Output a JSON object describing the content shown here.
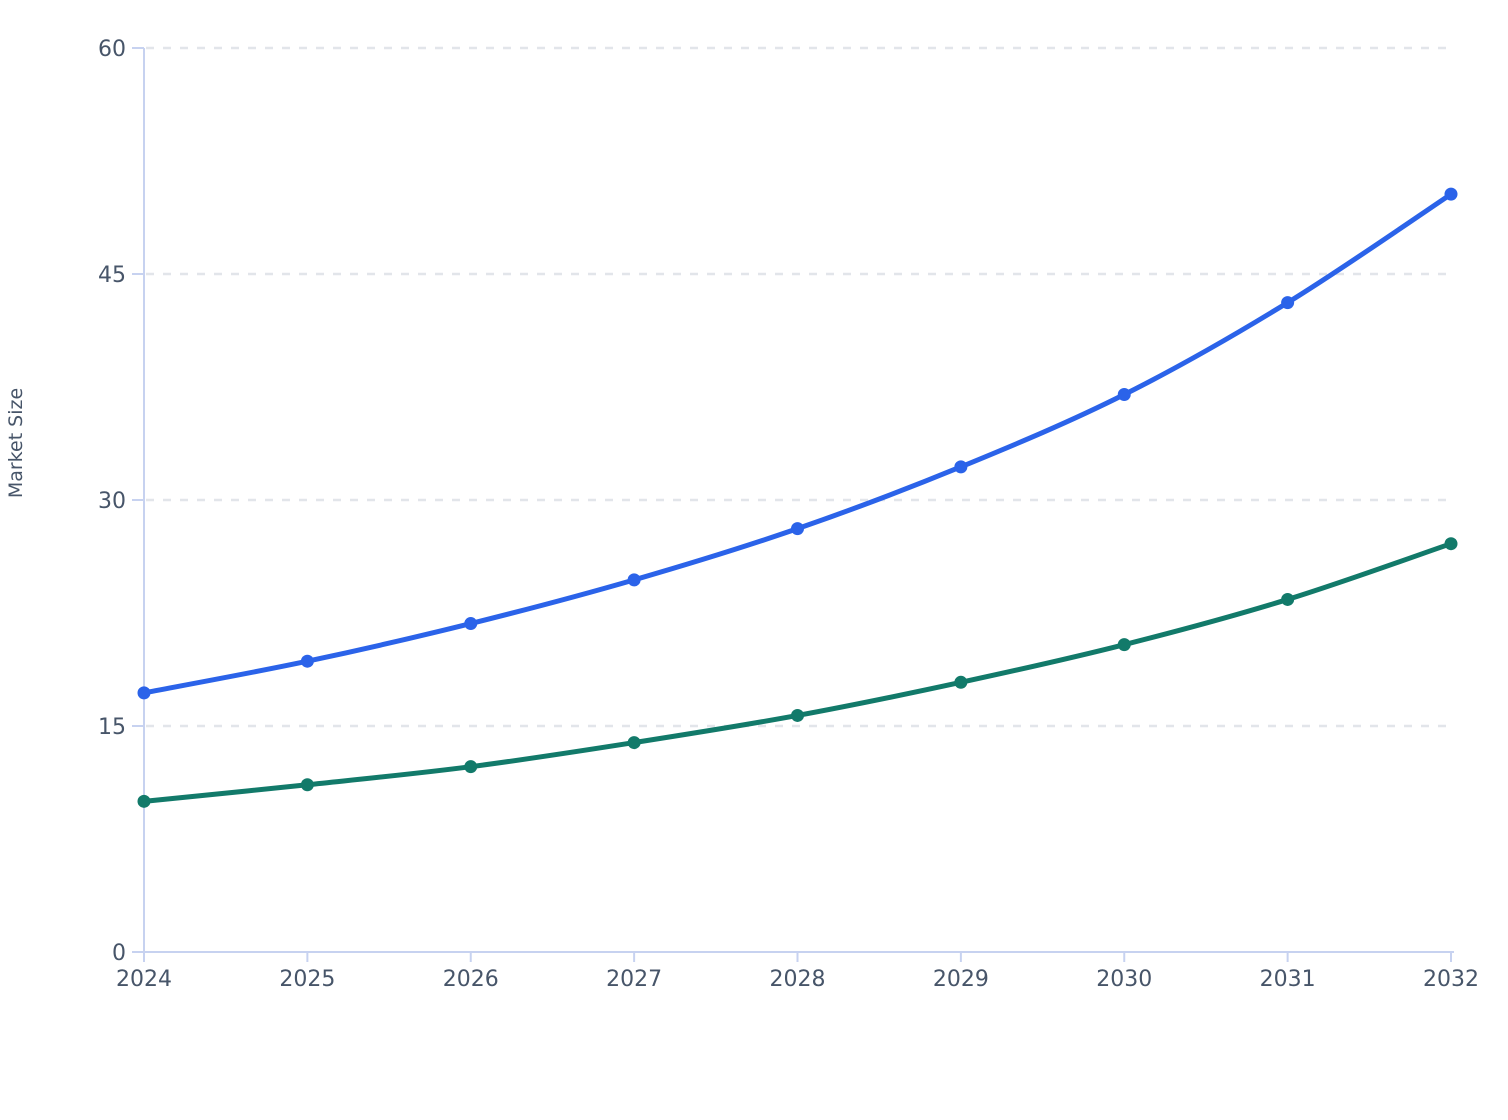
{
  "chart_data": {
    "type": "line",
    "title": "",
    "xlabel": "",
    "ylabel": "Market Size",
    "x": [
      "2024",
      "2025",
      "2026",
      "2027",
      "2028",
      "2029",
      "2030",
      "2031",
      "2032"
    ],
    "ylim": [
      0,
      60
    ],
    "yticks": [
      0,
      15,
      30,
      45,
      60
    ],
    "ytick_labels": [
      "0",
      "15",
      "30",
      "45",
      "60"
    ],
    "grid": "horizontal-dashed",
    "legend_position": "none",
    "series": [
      {
        "id": "series-1",
        "color": "#2b63e9",
        "marker": "circle",
        "values": [
          17.2,
          19.3,
          21.8,
          24.7,
          28.1,
          32.2,
          37.0,
          43.1,
          50.3
        ]
      },
      {
        "id": "series-2",
        "color": "#127a6a",
        "marker": "circle",
        "values": [
          10.0,
          11.1,
          12.3,
          13.9,
          15.7,
          17.9,
          20.4,
          23.4,
          27.1
        ]
      }
    ]
  },
  "colors": {
    "background": "#ffffff",
    "axis_line": "#c7d2f0",
    "gridline": "#e2e5ea",
    "tick_label": "#475569",
    "axis_title": "#475569",
    "series_blue": "#2b63e9",
    "series_green": "#127a6a"
  }
}
